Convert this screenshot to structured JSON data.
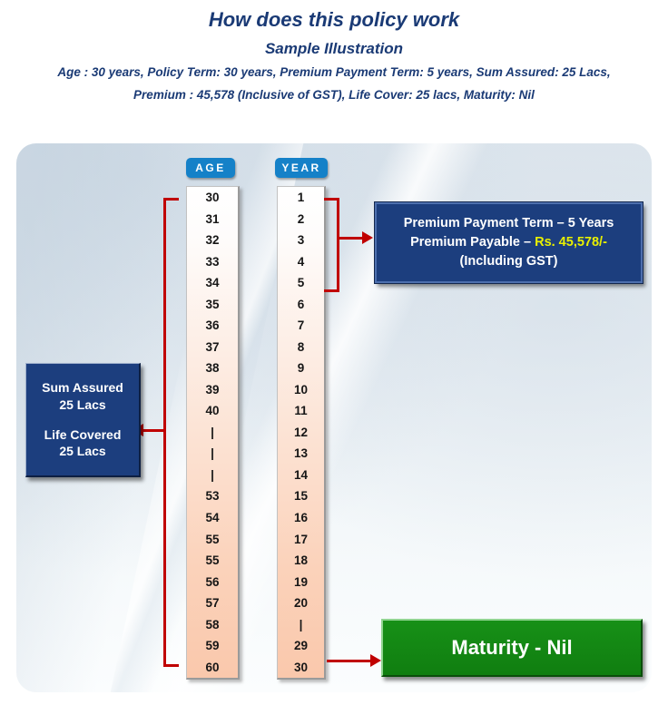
{
  "header": {
    "title": "How does this policy work",
    "subtitle": "Sample Illustration",
    "detail_line1": "Age : 30 years, Policy Term: 30 years, Premium Payment Term: 5 years, Sum Assured: 25 Lacs,",
    "detail_line2": "Premium : 45,578 (Inclusive of GST), Life Cover: 25 lacs, Maturity: Nil"
  },
  "diagram": {
    "age_column": {
      "header": "AGE",
      "values": [
        "30",
        "31",
        "32",
        "33",
        "34",
        "35",
        "36",
        "37",
        "38",
        "39",
        "40",
        "|",
        "|",
        "|",
        "53",
        "54",
        "55",
        "55",
        "56",
        "57",
        "58",
        "59",
        "60"
      ]
    },
    "year_column": {
      "header": "YEAR",
      "values": [
        "1",
        "2",
        "3",
        "4",
        "5",
        "6",
        "7",
        "8",
        "9",
        "10",
        "11",
        "12",
        "13",
        "14",
        "15",
        "16",
        "17",
        "18",
        "19",
        "20",
        "|",
        "29",
        "30"
      ]
    },
    "sum_assured_box": {
      "line1": "Sum Assured",
      "line2": "25 Lacs",
      "line3": "Life Covered",
      "line4": "25 Lacs"
    },
    "premium_box": {
      "line1": "Premium Payment Term – 5 Years",
      "line2_prefix": "Premium Payable – ",
      "line2_highlight": "Rs. 45,578/-",
      "line3": "(Including GST)"
    },
    "maturity_box": {
      "label": "Maturity - Nil"
    }
  },
  "colors": {
    "header_text": "#1a3a75",
    "badge_blue": "#1581c8",
    "box_blue": "#1c3e7e",
    "highlight_yellow": "#e9f000",
    "maturity_green": "#128b12",
    "connector_red": "#c00000",
    "column_peach": "#fac8ac"
  }
}
